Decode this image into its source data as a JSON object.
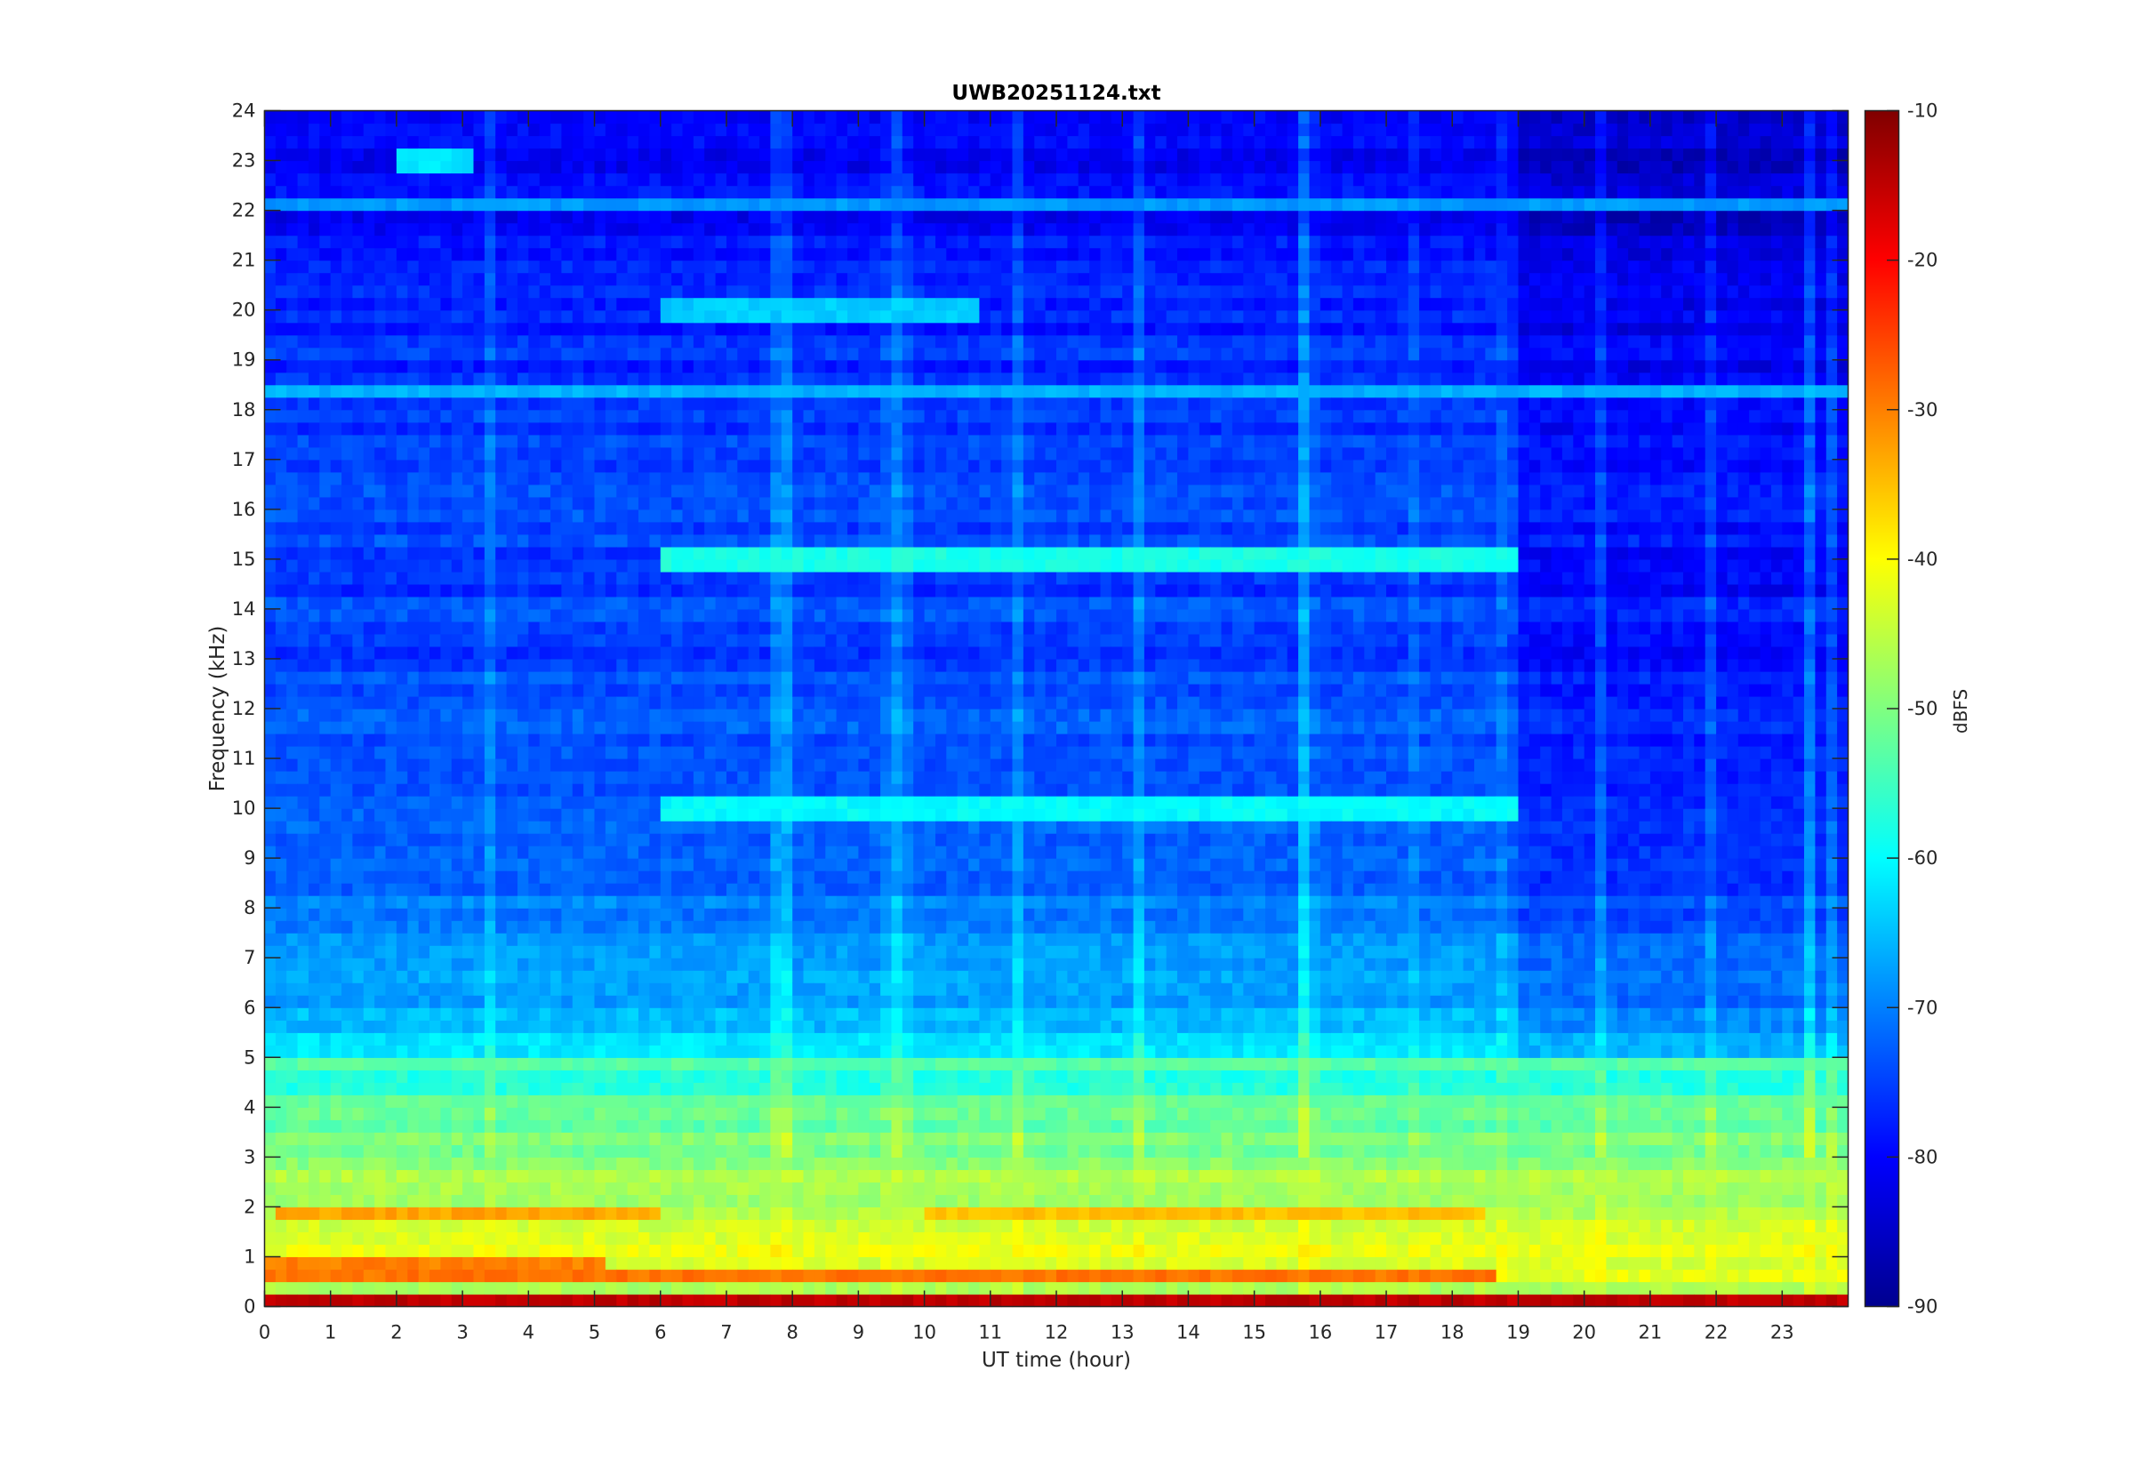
{
  "chart_data": {
    "type": "heatmap",
    "title": "UWB20251124.txt",
    "xlabel": "UT time (hour)",
    "ylabel": "Frequency (kHz)",
    "colorbar_label": "dBFS",
    "colormap": "jet",
    "xlim": [
      0,
      24
    ],
    "ylim": [
      0,
      24
    ],
    "clim": [
      -90,
      -10
    ],
    "xticks": [
      0,
      1,
      2,
      3,
      4,
      5,
      6,
      7,
      8,
      9,
      10,
      11,
      12,
      13,
      14,
      15,
      16,
      17,
      18,
      19,
      20,
      21,
      22,
      23
    ],
    "yticks": [
      0,
      1,
      2,
      3,
      4,
      5,
      6,
      7,
      8,
      9,
      10,
      11,
      12,
      13,
      14,
      15,
      16,
      17,
      18,
      19,
      20,
      21,
      22,
      23,
      24
    ],
    "colorbar_ticks": [
      -10,
      -20,
      -30,
      -40,
      -50,
      -60,
      -70,
      -80,
      -90
    ],
    "background_profile": {
      "freq_khz": [
        0,
        0.2,
        0.5,
        1,
        1.5,
        2,
        2.5,
        3,
        3.5,
        4,
        4.5,
        5,
        5.5,
        6,
        7,
        8,
        9,
        10,
        12,
        14,
        16,
        18,
        20,
        21,
        22,
        24
      ],
      "level_dbfs": [
        -40,
        -52,
        -40,
        -42,
        -44,
        -46,
        -47,
        -49,
        -52,
        -54,
        -57,
        -60,
        -64,
        -67,
        -68,
        -70,
        -72,
        -73,
        -74,
        -75,
        -75,
        -76,
        -77,
        -79,
        -80,
        -81
      ]
    },
    "features": [
      {
        "freq_khz": 0.05,
        "t_start": 0,
        "t_end": 24,
        "level_dbfs": -15
      },
      {
        "freq_khz": 0.68,
        "t_start": 0,
        "t_end": 18.6,
        "level_dbfs": -29
      },
      {
        "freq_khz": 0.9,
        "t_start": 0,
        "t_end": 5.2,
        "level_dbfs": -30
      },
      {
        "freq_khz": 1.85,
        "t_start": 0.2,
        "t_end": 6,
        "level_dbfs": -33
      },
      {
        "freq_khz": 1.8,
        "t_start": 10,
        "t_end": 18.5,
        "level_dbfs": -35
      },
      {
        "freq_khz": 4.2,
        "t_start": 0,
        "t_end": 24,
        "level_dbfs": -52
      },
      {
        "freq_khz": 4.8,
        "t_start": 0,
        "t_end": 24,
        "level_dbfs": -53
      },
      {
        "freq_khz": 10.0,
        "t_start": 6,
        "t_end": 19,
        "level_dbfs": -60
      },
      {
        "freq_khz": 15.0,
        "t_start": 6,
        "t_end": 19,
        "level_dbfs": -58
      },
      {
        "freq_khz": 18.3,
        "t_start": 0,
        "t_end": 24,
        "level_dbfs": -66
      },
      {
        "freq_khz": 20.0,
        "t_start": 6,
        "t_end": 10.8,
        "level_dbfs": -64
      },
      {
        "freq_khz": 22.2,
        "t_start": 0,
        "t_end": 24,
        "level_dbfs": -68
      },
      {
        "freq_khz": 23.0,
        "t_start": 2,
        "t_end": 3.1,
        "level_dbfs": -62
      }
    ],
    "quiet_period": {
      "t_start": 19,
      "t_end": 24,
      "freq_above_khz": 5,
      "offset_db": -4
    }
  }
}
